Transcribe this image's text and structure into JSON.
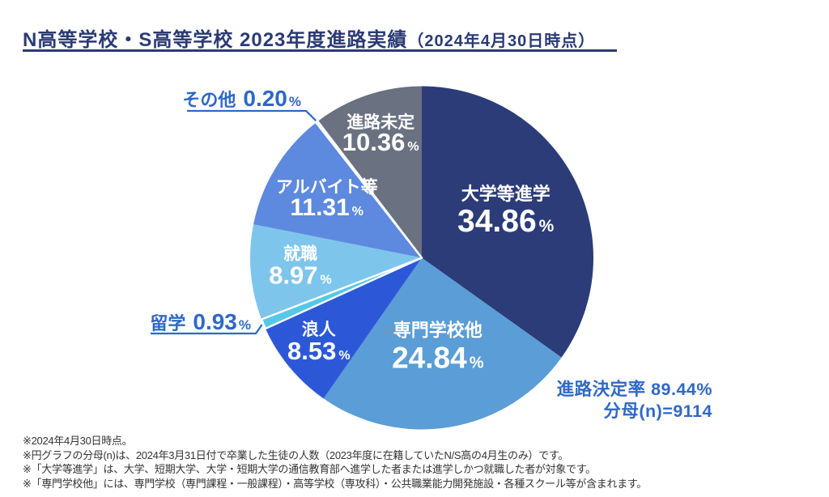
{
  "page": {
    "background": "#ffffff"
  },
  "header": {
    "title_main": "N高等学校・S高等学校 2023年度進路実績",
    "title_sub": "（2024年4月30日時点）",
    "title_color": "#2a3a74"
  },
  "colors": {
    "accent_blue": "#2e68c8",
    "title_navy": "#2a3a74",
    "footnote_gray": "#333333",
    "inside_label": "#ffffff"
  },
  "chart_data": {
    "type": "pie",
    "title": "N高等学校・S高等学校 2023年度進路実績（2024年4月30日時点）",
    "unit": "%",
    "direction": "clockwise",
    "start_angle_deg": 0,
    "legend": "none",
    "labels_on_slices": true,
    "slices": [
      {
        "label": "大学等進学",
        "value": 34.86,
        "display": "34.86",
        "color": "#2b3c78",
        "label_placement": "inside"
      },
      {
        "label": "専門学校他",
        "value": 24.84,
        "display": "24.84",
        "color": "#5b9dd6",
        "label_placement": "inside"
      },
      {
        "label": "浪人",
        "value": 8.53,
        "display": "8.53",
        "color": "#2c58d8",
        "label_placement": "inside"
      },
      {
        "label": "留学",
        "value": 0.93,
        "display": "0.93",
        "color": "#55c8e8",
        "label_placement": "outside"
      },
      {
        "label": "就職",
        "value": 8.97,
        "display": "8.97",
        "color": "#7ec5ec",
        "label_placement": "inside"
      },
      {
        "label": "アルバイト等",
        "value": 11.31,
        "display": "11.31",
        "color": "#5d89de",
        "label_placement": "inside"
      },
      {
        "label": "その他",
        "value": 0.2,
        "display": "0.20",
        "color": "#c9d3e0",
        "label_placement": "outside"
      },
      {
        "label": "進路未定",
        "value": 10.36,
        "display": "10.36",
        "color": "#6a7181",
        "label_placement": "inside"
      }
    ],
    "annotations": {
      "decision_rate": "進路決定率 89.44%",
      "denominator": "分母(n)=9114"
    }
  },
  "footnotes": [
    "※2024年4月30日時点。",
    "※円グラフの分母(n)は、2024年3月31日付で卒業した生徒の人数（2023年度に在籍していたN/S高の4月生のみ）です。",
    "※「大学等進学」は、大学、短期大学、大学・短期大学の通信教育部へ進学した者または進学しかつ就職した者が対象です。",
    "※「専門学校他」には、専門学校（専門課程・一般課程）・高等学校（専攻科）・公共職業能力開発施設・各種スクール等が含まれます。"
  ]
}
